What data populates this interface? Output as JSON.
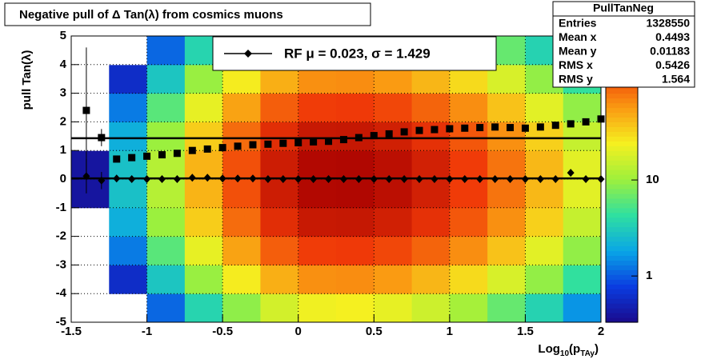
{
  "chart_data": {
    "type": "heatmap",
    "title": "Negative pull of Δ Tan(λ) from cosmics muons",
    "y_label": "pull Tan(λ)",
    "x_label": [
      "Log",
      "10",
      "(p",
      "TAy",
      ")"
    ],
    "xlim": [
      -1.5,
      2
    ],
    "ylim": [
      -5,
      5
    ],
    "xticks": [
      -1.5,
      -1,
      -0.5,
      0,
      0.5,
      1,
      1.5,
      2
    ],
    "yticks": [
      -5,
      -4,
      -3,
      -2,
      -1,
      0,
      1,
      2,
      3,
      4,
      5
    ],
    "grid": true,
    "log_z": true,
    "zlim": [
      0.33,
      316
    ],
    "zticks": [
      1,
      10
    ],
    "palette": [
      "#1a0a8c",
      "#0a3ce0",
      "#09a6e6",
      "#2fe0a0",
      "#9ef03c",
      "#f5f020",
      "#fa9a12",
      "#f03a08",
      "#a80000"
    ],
    "x_edges": [
      -1.5,
      -1.25,
      -1,
      -0.75,
      -0.5,
      -0.25,
      0,
      0.25,
      0.5,
      0.75,
      1,
      1.25,
      1.5,
      1.75,
      2
    ],
    "y_edges": [
      -5,
      -4,
      -3,
      -2,
      -1,
      0,
      1,
      2,
      3,
      4,
      5
    ],
    "z": [
      [
        0.04,
        0.2,
        1.1,
        3.6,
        9.1,
        17,
        23,
        24,
        21,
        16,
        11,
        6.6,
        3.5,
        1.6
      ],
      [
        0.1,
        0.6,
        2.9,
        9.8,
        25,
        46,
        62,
        64,
        56,
        43,
        30,
        18,
        9.4,
        4.4
      ],
      [
        0.2,
        1.3,
        6,
        21,
        52,
        97,
        132,
        135,
        119,
        92,
        63,
        38,
        20,
        9.3
      ],
      [
        0.3,
        2.1,
        10,
        34,
        86,
        160,
        218,
        223,
        196,
        152,
        103,
        62,
        33,
        15
      ],
      [
        0.4,
        2.7,
        12.8,
        44,
        110,
        205,
        280,
        286,
        252,
        195,
        133,
        80,
        42,
        20
      ],
      [
        0.4,
        2.7,
        12.8,
        44,
        110,
        205,
        280,
        286,
        252,
        195,
        133,
        80,
        42,
        20
      ],
      [
        0.3,
        2.1,
        10,
        34,
        86,
        160,
        218,
        223,
        196,
        152,
        103,
        62,
        33,
        15
      ],
      [
        0.2,
        1.3,
        6,
        21,
        52,
        97,
        132,
        135,
        119,
        92,
        63,
        38,
        20,
        9.3
      ],
      [
        0.1,
        0.6,
        2.9,
        9.8,
        25,
        46,
        62,
        64,
        56,
        43,
        30,
        18,
        9.4,
        4.4
      ],
      [
        0.04,
        0.2,
        1.1,
        3.6,
        9.1,
        17,
        23,
        24,
        21,
        16,
        11,
        6.6,
        3.5,
        1.6
      ]
    ],
    "x": [
      -1.4,
      -1.3,
      -1.2,
      -1.1,
      -1.0,
      -0.9,
      -0.8,
      -0.7,
      -0.6,
      -0.5,
      -0.4,
      -0.3,
      -0.2,
      -0.1,
      0,
      0.1,
      0.2,
      0.3,
      0.4,
      0.5,
      0.6,
      0.7,
      0.8,
      0.9,
      1.0,
      1.1,
      1.2,
      1.3,
      1.4,
      1.5,
      1.6,
      1.7,
      1.8,
      1.9,
      2.0
    ],
    "series": [
      {
        "name": "RF μ =  0.023, σ =   1.429",
        "marker": "diamond",
        "color": "#000000",
        "values": [
          0.1,
          -0.05,
          0.02,
          0,
          0,
          0,
          0,
          0.05,
          0.05,
          0.02,
          0.02,
          0.02,
          0,
          0,
          0,
          0,
          0,
          0,
          0,
          0,
          0,
          0,
          0,
          0,
          0,
          0,
          0,
          0,
          0,
          0,
          0,
          0,
          0.22,
          0,
          0
        ],
        "errors": [
          0.6,
          0.3,
          null,
          null,
          null,
          null,
          null,
          null,
          null,
          null,
          null,
          null,
          null,
          null,
          null,
          null,
          null,
          null,
          null,
          null,
          null,
          null,
          null,
          null,
          null,
          null,
          null,
          null,
          null,
          null,
          null,
          null,
          null,
          null,
          null
        ]
      },
      {
        "marker": "square",
        "color": "#000000",
        "values": [
          2.4,
          1.45,
          0.7,
          0.75,
          0.8,
          0.85,
          0.9,
          1.0,
          1.05,
          1.1,
          1.15,
          1.2,
          1.22,
          1.25,
          1.27,
          1.3,
          1.32,
          1.38,
          1.45,
          1.52,
          1.58,
          1.65,
          1.7,
          1.73,
          1.76,
          1.78,
          1.8,
          1.82,
          1.8,
          1.78,
          1.82,
          1.88,
          1.93,
          2.0,
          2.1
        ],
        "errors": [
          2.2,
          0.3,
          null,
          null,
          null,
          null,
          null,
          null,
          null,
          null,
          null,
          null,
          null,
          null,
          null,
          null,
          null,
          null,
          null,
          null,
          null,
          null,
          null,
          null,
          null,
          null,
          null,
          null,
          null,
          null,
          null,
          null,
          null,
          null,
          null
        ]
      }
    ],
    "fit_mu": 0.023,
    "fit_sigma": 1.429,
    "stats": {
      "title": "PullTanNeg",
      "rows": [
        [
          "Entries",
          1328550
        ],
        [
          "Mean x",
          0.4493
        ],
        [
          "Mean y",
          0.01183
        ],
        [
          "RMS x",
          0.5426
        ],
        [
          "RMS y",
          1.564
        ]
      ]
    }
  }
}
